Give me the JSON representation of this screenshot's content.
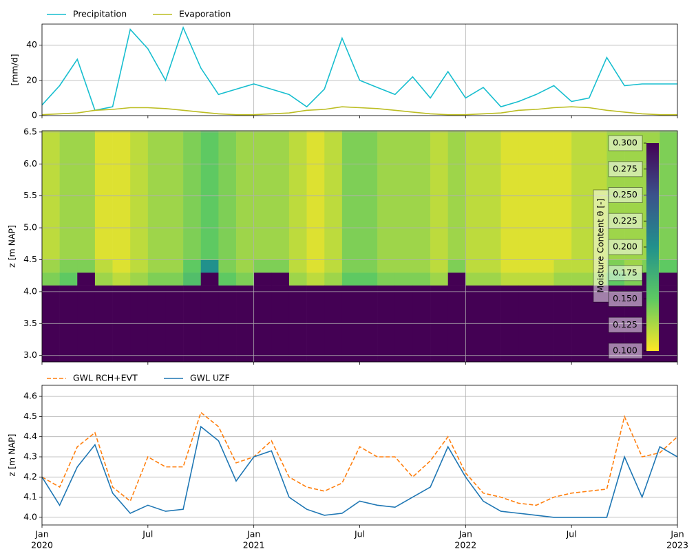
{
  "chart_data": [
    {
      "type": "line",
      "x": [
        "2020-01",
        "2020-02",
        "2020-03",
        "2020-04",
        "2020-05",
        "2020-06",
        "2020-07",
        "2020-08",
        "2020-09",
        "2020-10",
        "2020-11",
        "2020-12",
        "2021-01",
        "2021-02",
        "2021-03",
        "2021-04",
        "2021-05",
        "2021-06",
        "2021-07",
        "2021-08",
        "2021-09",
        "2021-10",
        "2021-11",
        "2021-12",
        "2022-01",
        "2022-02",
        "2022-03",
        "2022-04",
        "2022-05",
        "2022-06",
        "2022-07",
        "2022-08",
        "2022-09",
        "2022-10",
        "2022-11",
        "2022-12",
        "2023-01"
      ],
      "ylabel": "[mm/d]",
      "xlim": [
        "2020-01",
        "2023-01"
      ],
      "ylim": [
        0,
        52
      ],
      "yticks": [
        0,
        20,
        40
      ],
      "grid": true,
      "series": [
        {
          "name": "Precipitation",
          "color": "#17becf",
          "values": [
            6,
            17,
            32,
            3,
            5,
            49,
            38,
            20,
            50,
            27,
            12,
            15,
            18,
            15,
            12,
            5,
            15,
            44,
            20,
            16,
            12,
            22,
            10,
            25,
            10,
            16,
            5,
            8,
            12,
            17,
            8,
            10,
            33,
            17,
            18,
            18,
            18
          ]
        },
        {
          "name": "Evaporation",
          "color": "#bcbd22",
          "values": [
            0.5,
            1,
            1.5,
            3,
            3.5,
            4.5,
            4.5,
            4,
            3,
            2,
            1,
            0.5,
            0.5,
            1,
            1.5,
            3,
            3.5,
            5,
            4.5,
            4,
            3,
            2,
            1,
            0.5,
            0.5,
            1,
            1.5,
            3,
            3.5,
            4.5,
            5,
            4.5,
            3,
            2,
            1,
            0.5,
            0.5
          ]
        }
      ]
    },
    {
      "type": "heatmap",
      "x": [
        "2020-01",
        "2020-02",
        "2020-03",
        "2020-04",
        "2020-05",
        "2020-06",
        "2020-07",
        "2020-08",
        "2020-09",
        "2020-10",
        "2020-11",
        "2020-12",
        "2021-01",
        "2021-02",
        "2021-03",
        "2021-04",
        "2021-05",
        "2021-06",
        "2021-07",
        "2021-08",
        "2021-09",
        "2021-10",
        "2021-11",
        "2021-12",
        "2022-01",
        "2022-02",
        "2022-03",
        "2022-04",
        "2022-05",
        "2022-06",
        "2022-07",
        "2022-08",
        "2022-09",
        "2022-10",
        "2022-11",
        "2022-12",
        "2023-01"
      ],
      "xlim": [
        "2020-01",
        "2023-01"
      ],
      "ylabel": "z [m NAP]",
      "z_edges": [
        2.9,
        4.1,
        4.3,
        4.5,
        6.52
      ],
      "values": [
        [
          0.3,
          0.14,
          0.13,
          0.12
        ],
        [
          0.3,
          0.15,
          0.14,
          0.13
        ],
        [
          0.3,
          0.3,
          0.14,
          0.13
        ],
        [
          0.3,
          0.13,
          0.12,
          0.11
        ],
        [
          0.3,
          0.12,
          0.11,
          0.11
        ],
        [
          0.3,
          0.13,
          0.12,
          0.12
        ],
        [
          0.3,
          0.14,
          0.13,
          0.13
        ],
        [
          0.3,
          0.14,
          0.13,
          0.13
        ],
        [
          0.3,
          0.16,
          0.15,
          0.14
        ],
        [
          0.3,
          0.3,
          0.2,
          0.15
        ],
        [
          0.3,
          0.15,
          0.14,
          0.14
        ],
        [
          0.3,
          0.14,
          0.13,
          0.13
        ],
        [
          0.3,
          0.3,
          0.14,
          0.13
        ],
        [
          0.3,
          0.3,
          0.14,
          0.13
        ],
        [
          0.3,
          0.13,
          0.12,
          0.12
        ],
        [
          0.3,
          0.12,
          0.11,
          0.11
        ],
        [
          0.3,
          0.13,
          0.12,
          0.12
        ],
        [
          0.3,
          0.15,
          0.14,
          0.14
        ],
        [
          0.3,
          0.15,
          0.14,
          0.14
        ],
        [
          0.3,
          0.14,
          0.13,
          0.13
        ],
        [
          0.3,
          0.14,
          0.13,
          0.13
        ],
        [
          0.3,
          0.14,
          0.13,
          0.13
        ],
        [
          0.3,
          0.13,
          0.12,
          0.12
        ],
        [
          0.3,
          0.3,
          0.14,
          0.13
        ],
        [
          0.3,
          0.13,
          0.12,
          0.12
        ],
        [
          0.3,
          0.13,
          0.12,
          0.12
        ],
        [
          0.3,
          0.12,
          0.11,
          0.11
        ],
        [
          0.3,
          0.12,
          0.11,
          0.11
        ],
        [
          0.3,
          0.12,
          0.11,
          0.11
        ],
        [
          0.3,
          0.13,
          0.12,
          0.11
        ],
        [
          0.3,
          0.13,
          0.12,
          0.12
        ],
        [
          0.3,
          0.13,
          0.12,
          0.12
        ],
        [
          0.3,
          0.15,
          0.14,
          0.13
        ],
        [
          0.3,
          0.14,
          0.13,
          0.13
        ],
        [
          0.3,
          0.3,
          0.14,
          0.13
        ],
        [
          0.3,
          0.3,
          0.15,
          0.14
        ]
      ],
      "ylim": [
        2.9,
        6.52
      ],
      "yticks": [
        {
          "value": 3,
          "label": "3.0"
        },
        3.5,
        {
          "value": 4,
          "label": "4.0"
        },
        4.5,
        {
          "value": 5,
          "label": "5.0"
        },
        5.5,
        {
          "value": 6,
          "label": "6.0"
        },
        6.5
      ],
      "grid": true,
      "colorbar_label": "Moisture Content θ [-]",
      "clim": [
        0.1,
        0.3
      ],
      "colorbar_ticks": [
        {
          "value": 0.1,
          "label": "0.100"
        },
        {
          "value": 0.125,
          "label": "0.125"
        },
        {
          "value": 0.15,
          "label": "0.150"
        },
        {
          "value": 0.175,
          "label": "0.175"
        },
        {
          "value": 0.2,
          "label": "0.200"
        },
        {
          "value": 0.225,
          "label": "0.225"
        },
        {
          "value": 0.25,
          "label": "0.250"
        },
        {
          "value": 0.275,
          "label": "0.275"
        },
        {
          "value": 0.3,
          "label": "0.300"
        }
      ],
      "colormap": "viridis_r"
    },
    {
      "type": "line",
      "x": [
        "2020-01",
        "2020-02",
        "2020-03",
        "2020-04",
        "2020-05",
        "2020-06",
        "2020-07",
        "2020-08",
        "2020-09",
        "2020-10",
        "2020-11",
        "2020-12",
        "2021-01",
        "2021-02",
        "2021-03",
        "2021-04",
        "2021-05",
        "2021-06",
        "2021-07",
        "2021-08",
        "2021-09",
        "2021-10",
        "2021-11",
        "2021-12",
        "2022-01",
        "2022-02",
        "2022-03",
        "2022-04",
        "2022-05",
        "2022-06",
        "2022-07",
        "2022-08",
        "2022-09",
        "2022-10",
        "2022-11",
        "2022-12",
        "2023-01"
      ],
      "ylabel": "z [m NAP]",
      "xlim": [
        "2020-01",
        "2023-01"
      ],
      "xticks": [
        {
          "value": "2020-01",
          "label": "Jan",
          "year": "2020"
        },
        {
          "value": "2020-07",
          "label": "Jul"
        },
        {
          "value": "2021-01",
          "label": "Jan",
          "year": "2021"
        },
        {
          "value": "2021-07",
          "label": "Jul"
        },
        {
          "value": "2022-01",
          "label": "Jan",
          "year": "2022"
        },
        {
          "value": "2022-07",
          "label": "Jul"
        },
        {
          "value": "2023-01",
          "label": "Jan",
          "year": "2023"
        }
      ],
      "ylim": [
        3.962,
        4.655
      ],
      "yticks": [
        {
          "value": 4,
          "label": "4.0"
        },
        4.1,
        4.2,
        4.3,
        4.4,
        4.5,
        4.6
      ],
      "grid": true,
      "series": [
        {
          "name": "GWL RCH+EVT",
          "color": "#ff7f0e",
          "dashed": true,
          "values": [
            4.2,
            4.15,
            4.35,
            4.42,
            4.15,
            4.08,
            4.3,
            4.25,
            4.25,
            4.52,
            4.45,
            4.27,
            4.3,
            4.38,
            4.2,
            4.15,
            4.13,
            4.17,
            4.35,
            4.3,
            4.3,
            4.2,
            4.28,
            4.4,
            4.22,
            4.12,
            4.1,
            4.07,
            4.06,
            4.1,
            4.12,
            4.13,
            4.14,
            4.5,
            4.3,
            4.32,
            4.4
          ]
        },
        {
          "name": "GWL UZF",
          "color": "#1f77b4",
          "values": [
            4.2,
            4.06,
            4.25,
            4.36,
            4.12,
            4.02,
            4.06,
            4.03,
            4.04,
            4.45,
            4.38,
            4.18,
            4.3,
            4.33,
            4.1,
            4.04,
            4.01,
            4.02,
            4.08,
            4.06,
            4.05,
            4.1,
            4.15,
            4.35,
            4.2,
            4.08,
            4.03,
            4.02,
            4.01,
            4,
            4,
            4,
            4,
            4.3,
            4.1,
            4.35,
            4.3
          ]
        }
      ]
    }
  ]
}
